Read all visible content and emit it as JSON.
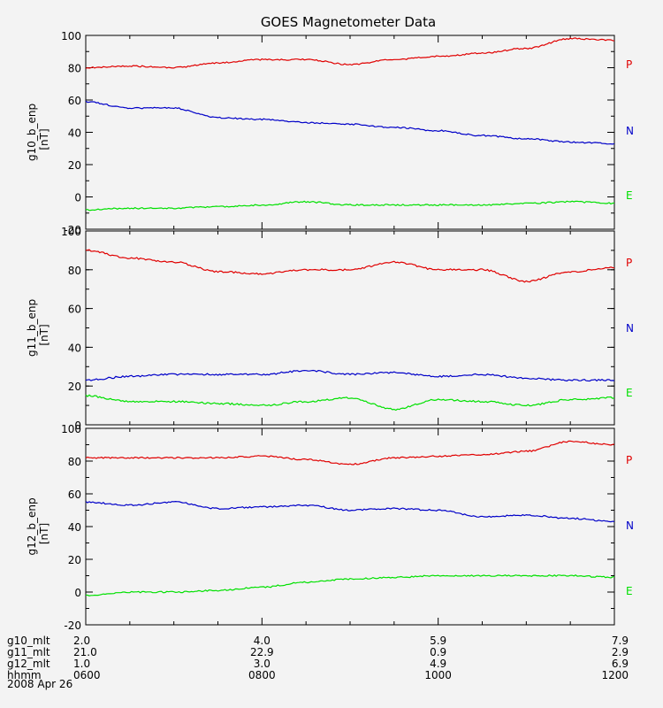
{
  "title": "GOES Magnetometer Data",
  "date_label": "2008 Apr 26",
  "colors": {
    "P": "#e00000",
    "N": "#0000c8",
    "E": "#00e000",
    "axis": "#000000",
    "background": "#f3f3f3"
  },
  "x_axis": {
    "range": [
      "0600",
      "1200"
    ],
    "ticks": [
      "0600",
      "0800",
      "1000",
      "1200"
    ],
    "minor_ticks_per_major": 4,
    "rows": [
      {
        "label": "g10_mlt",
        "values": [
          "2.0",
          "4.0",
          "5.9",
          "7.9"
        ]
      },
      {
        "label": "g11_mlt",
        "values": [
          "21.0",
          "22.9",
          "0.9",
          "2.9"
        ]
      },
      {
        "label": "g12_mlt",
        "values": [
          "1.0",
          "3.0",
          "4.9",
          "6.9"
        ]
      },
      {
        "label": "hhmm",
        "values": [
          "0600",
          "0800",
          "1000",
          "1200"
        ]
      }
    ]
  },
  "chart_data": [
    {
      "type": "line",
      "ylabel": "g10_b_enp",
      "yunit": "[nT]",
      "ylim": [
        -20,
        100
      ],
      "yticks": [
        -20,
        0,
        20,
        40,
        60,
        80,
        100
      ],
      "x": [
        "0600",
        "0630",
        "0700",
        "0730",
        "0800",
        "0830",
        "0900",
        "0930",
        "1000",
        "1030",
        "1100",
        "1130",
        "1200"
      ],
      "series": [
        {
          "name": "P",
          "values": [
            80,
            81,
            80,
            83,
            85,
            85,
            82,
            85,
            87,
            89,
            92,
            98,
            97
          ]
        },
        {
          "name": "N",
          "values": [
            59,
            55,
            55,
            49,
            48,
            46,
            45,
            43,
            41,
            38,
            36,
            34,
            33
          ]
        },
        {
          "name": "E",
          "values": [
            -8,
            -7,
            -7,
            -6,
            -5,
            -3,
            -5,
            -5,
            -5,
            -5,
            -4,
            -3,
            -4
          ]
        }
      ]
    },
    {
      "type": "line",
      "ylabel": "g11_b_enp",
      "yunit": "[nT]",
      "ylim": [
        0,
        100
      ],
      "yticks": [
        0,
        20,
        40,
        60,
        80,
        100
      ],
      "x": [
        "0600",
        "0630",
        "0700",
        "0730",
        "0800",
        "0830",
        "0900",
        "0930",
        "1000",
        "1030",
        "1100",
        "1130",
        "1200"
      ],
      "series": [
        {
          "name": "P",
          "values": [
            90,
            86,
            84,
            79,
            78,
            80,
            80,
            84,
            80,
            80,
            74,
            79,
            81
          ]
        },
        {
          "name": "N",
          "values": [
            23,
            25,
            26,
            26,
            26,
            28,
            26,
            27,
            25,
            26,
            24,
            23,
            23
          ]
        },
        {
          "name": "E",
          "values": [
            15,
            12,
            12,
            11,
            10,
            12,
            14,
            8,
            13,
            12,
            10,
            13,
            14
          ]
        }
      ]
    },
    {
      "type": "line",
      "ylabel": "g12_b_enp",
      "yunit": "[nT]",
      "ylim": [
        -20,
        100
      ],
      "yticks": [
        -20,
        0,
        20,
        40,
        60,
        80,
        100
      ],
      "x": [
        "0600",
        "0630",
        "0700",
        "0730",
        "0800",
        "0830",
        "0900",
        "0930",
        "1000",
        "1030",
        "1100",
        "1130",
        "1200"
      ],
      "series": [
        {
          "name": "P",
          "values": [
            82,
            82,
            82,
            82,
            83,
            81,
            78,
            82,
            83,
            84,
            86,
            92,
            90
          ]
        },
        {
          "name": "N",
          "values": [
            55,
            53,
            55,
            51,
            52,
            53,
            50,
            51,
            50,
            46,
            47,
            45,
            43
          ]
        },
        {
          "name": "E",
          "values": [
            -2,
            0,
            0,
            1,
            3,
            6,
            8,
            9,
            10,
            10,
            10,
            10,
            9
          ]
        }
      ]
    }
  ]
}
